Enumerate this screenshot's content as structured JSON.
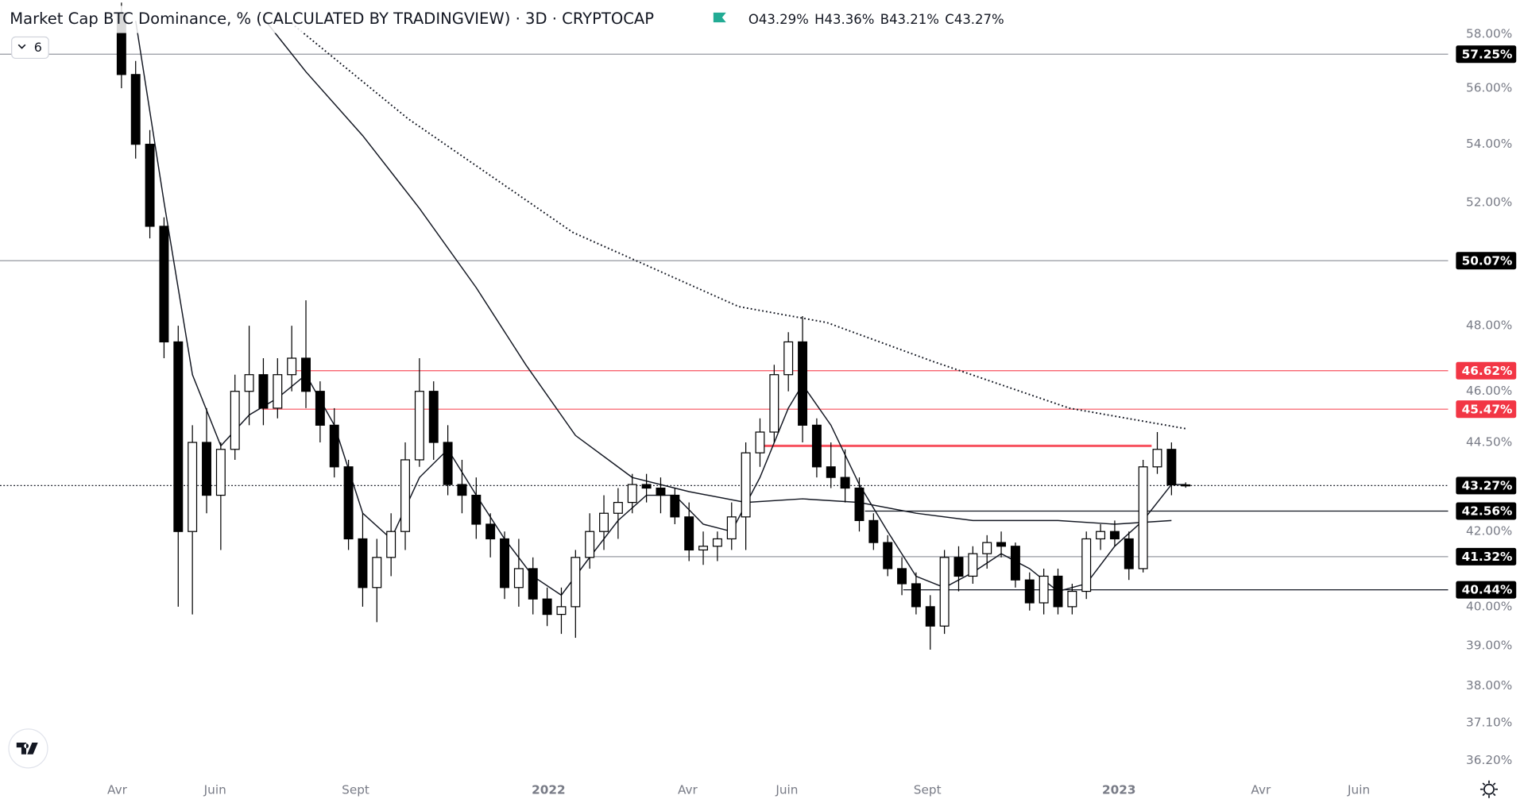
{
  "chart_data": {
    "type": "candlestick",
    "title": "Market Cap BTC Dominance, % (CALCULATED BY TRADINGVIEW) · 3D · CRYPTOCAP",
    "ohlc_labels": [
      "O43.29%",
      "H43.36%",
      "B43.21%",
      "C43.27%"
    ],
    "indicator_count": 6,
    "log_scale": true,
    "grid": false,
    "up_color": "#ffffff",
    "down_color": "#000000",
    "outline_color": "#000000",
    "x": [
      0,
      1,
      2,
      3,
      4,
      5,
      6,
      7,
      8,
      9,
      10,
      11,
      12,
      13,
      14,
      15,
      16,
      17,
      18,
      19,
      20,
      21,
      22,
      23,
      24,
      25,
      26,
      27,
      28,
      29,
      30,
      31,
      32,
      33,
      34,
      35,
      36,
      37,
      38,
      39,
      40,
      41,
      42,
      43,
      44,
      45,
      46,
      47,
      48,
      49,
      50,
      51,
      52,
      53,
      54,
      55,
      56,
      57,
      58,
      59,
      60,
      61,
      62,
      63,
      64,
      65,
      66,
      67,
      68,
      69,
      70,
      71,
      72,
      73,
      74,
      75
    ],
    "open": [
      58.8,
      56.5,
      54,
      51.2,
      47.5,
      42,
      44.5,
      43,
      44.3,
      46,
      46.5,
      45.5,
      46.5,
      47,
      46,
      45,
      43.8,
      41.8,
      40.5,
      41.3,
      42,
      44,
      46,
      44.5,
      43.3,
      43,
      42.2,
      41.8,
      40.5,
      41,
      40.2,
      39.8,
      40,
      41.3,
      42,
      42.5,
      42.8,
      43.3,
      43.2,
      43,
      42.4,
      41.5,
      41.6,
      41.8,
      42.4,
      44.2,
      44.8,
      46.5,
      47.5,
      45,
      43.8,
      43.5,
      43.2,
      42.3,
      41.7,
      41,
      40.6,
      40,
      39.5,
      41.3,
      40.8,
      41.4,
      41.7,
      41.6,
      40.7,
      40.1,
      40.8,
      40,
      40.4,
      41.8,
      42,
      41.8,
      41,
      43.8,
      44.3,
      43.29
    ],
    "high": [
      59.2,
      57,
      54.5,
      51.5,
      48,
      45,
      45.5,
      44.5,
      46.5,
      48,
      47,
      47,
      48,
      48.8,
      46.3,
      45.5,
      44,
      42.5,
      41.8,
      42.5,
      44.5,
      47,
      46.3,
      45,
      44,
      43.5,
      42.5,
      42,
      41.8,
      41.3,
      40.5,
      40.5,
      41.5,
      42.5,
      43,
      43.2,
      43.6,
      43.6,
      43.5,
      43.2,
      42.8,
      42,
      42,
      42.8,
      44.5,
      45.2,
      46.8,
      47.8,
      48.3,
      45.2,
      44.5,
      44.3,
      43.5,
      42.5,
      41.9,
      41.3,
      40.9,
      40.3,
      41.5,
      41.6,
      41.6,
      41.9,
      42,
      41.7,
      40.9,
      41,
      41,
      40.6,
      42,
      42.2,
      42.3,
      42,
      44,
      44.8,
      44.5,
      43.36
    ],
    "low": [
      56,
      53.5,
      50.8,
      47,
      40,
      39.8,
      42.5,
      41.5,
      44,
      45,
      45,
      45.2,
      46,
      45.5,
      44.5,
      43.5,
      41.5,
      40,
      39.6,
      40.8,
      41.5,
      43.8,
      44,
      43,
      42.5,
      41.8,
      41.3,
      40.2,
      40,
      39.8,
      39.5,
      39.3,
      39.2,
      41,
      41.5,
      41.8,
      42.5,
      42.8,
      42.5,
      42.2,
      41.2,
      41.1,
      41.2,
      41.5,
      41.5,
      43.8,
      44.5,
      46,
      44.5,
      43.5,
      43.2,
      42.8,
      42,
      41.5,
      40.8,
      40.3,
      39.8,
      38.9,
      39.3,
      40.4,
      40.6,
      41,
      41.3,
      40.5,
      39.9,
      39.8,
      39.8,
      39.8,
      40.2,
      41.5,
      41.6,
      40.7,
      40.9,
      43.6,
      43,
      43.21
    ],
    "close": [
      56.5,
      54,
      51.2,
      47.5,
      42,
      44.5,
      43,
      44.3,
      46,
      46.5,
      45.5,
      46.5,
      47,
      46,
      45,
      43.8,
      41.8,
      40.5,
      41.3,
      42,
      44,
      46,
      44.5,
      43.3,
      43,
      42.2,
      41.8,
      40.5,
      41,
      40.2,
      39.8,
      40,
      41.3,
      42,
      42.5,
      42.8,
      43.3,
      43.2,
      43,
      42.4,
      41.5,
      41.6,
      41.8,
      42.4,
      44.2,
      44.8,
      46.5,
      47.5,
      45,
      43.8,
      43.5,
      43.2,
      42.3,
      41.7,
      41,
      40.6,
      40,
      39.5,
      41.3,
      40.8,
      41.4,
      41.7,
      41.6,
      40.7,
      40.1,
      40.8,
      40,
      40.4,
      41.8,
      42,
      41.8,
      41,
      43.8,
      44.3,
      43.29,
      43.27
    ],
    "lines": [
      {
        "color": "#131722",
        "style": "solid",
        "x": [
          1,
          3,
          5,
          7,
          9,
          11,
          13,
          15,
          17,
          19,
          21,
          23,
          25,
          27,
          29,
          31,
          33,
          35,
          37,
          39,
          41,
          43,
          45,
          47,
          48,
          50,
          52,
          54,
          56,
          58,
          60,
          62,
          64,
          66,
          68,
          70,
          72,
          74,
          75
        ],
        "values": [
          58.5,
          52,
          46.5,
          44.4,
          45.3,
          45.8,
          46.5,
          45,
          42.5,
          41.8,
          43.5,
          44.3,
          43,
          41.8,
          40.8,
          40.3,
          41.3,
          42.3,
          43,
          43,
          42.2,
          42,
          43.5,
          45.5,
          46.2,
          45,
          43.3,
          42,
          40.8,
          40.5,
          40.9,
          41.4,
          41,
          40.4,
          40.6,
          41.6,
          42.3,
          43.3,
          43.3
        ]
      },
      {
        "color": "#131722",
        "style": "solid",
        "x": [
          10,
          13,
          17,
          21,
          25,
          28.5,
          32,
          36,
          40,
          44,
          48,
          52,
          56,
          60,
          66,
          70,
          74
        ],
        "values": [
          58.6,
          56.6,
          54.3,
          51.8,
          49.2,
          46.8,
          44.7,
          43.5,
          43.1,
          42.8,
          42.9,
          42.8,
          42.5,
          42.3,
          42.3,
          42.2,
          42.3
        ]
      },
      {
        "color": "#131722",
        "style": "dotted",
        "x": [
          12,
          20.2,
          31.8,
          43.5,
          49.7,
          57.2,
          66.8,
          75
        ],
        "values": [
          58.4,
          54.9,
          51,
          48.6,
          48.1,
          46.9,
          45.5,
          44.9
        ]
      }
    ],
    "levels": [
      {
        "value": 57.25,
        "label": "57.25%",
        "color": "#9598a1",
        "badge_color": "#000000"
      },
      {
        "value": 50.07,
        "label": "50.07%",
        "color": "#9598a1",
        "badge_color": "#000000"
      },
      {
        "value": 46.62,
        "label": "46.62%",
        "color": "#f7525f",
        "badge_color": "#f23645",
        "x_start": 12.0
      },
      {
        "value": 45.47,
        "label": "45.47%",
        "color": "#f7525f",
        "badge_color": "#f23645",
        "x_start": 9.9
      },
      {
        "value": 44.4,
        "color": "#f7525f",
        "x_start": 44.9,
        "x_end": 72.6
      },
      {
        "value": 43.27,
        "label": "43.27%",
        "color": "#131722",
        "badge_color": "#000000",
        "style": "dotted"
      },
      {
        "value": 42.56,
        "label": "42.56%",
        "color": "#131722",
        "badge_color": "#000000",
        "x_start": 52.4
      },
      {
        "value": 41.32,
        "label": "41.32%",
        "color": "#9598a1",
        "badge_color": "#000000",
        "x_start": 33.2
      },
      {
        "value": 40.44,
        "label": "40.44%",
        "color": "#131722",
        "badge_color": "#000000",
        "x_start": 55.1
      }
    ],
    "xlim": [
      -8.56,
      93.5
    ],
    "xticks": [
      {
        "value": -0.3,
        "label": "Avr"
      },
      {
        "value": 6.6,
        "label": "Juin"
      },
      {
        "value": 16.5,
        "label": "Sept"
      },
      {
        "value": 30.1,
        "label": "2022"
      },
      {
        "value": 39.9,
        "label": "Avr"
      },
      {
        "value": 46.9,
        "label": "Juin"
      },
      {
        "value": 56.8,
        "label": "Sept"
      },
      {
        "value": 70.3,
        "label": "2023"
      },
      {
        "value": 80.3,
        "label": "Avr"
      },
      {
        "value": 87.2,
        "label": "Juin"
      }
    ],
    "ylim": [
      35.8,
      59.3
    ],
    "yticks": [
      {
        "value": 58,
        "label": "58.00%"
      },
      {
        "value": 56,
        "label": "56.00%"
      },
      {
        "value": 54,
        "label": "54.00%"
      },
      {
        "value": 52,
        "label": "52.00%"
      },
      {
        "value": 48,
        "label": "48.00%"
      },
      {
        "value": 46,
        "label": "46.00%"
      },
      {
        "value": 44.5,
        "label": "44.50%"
      },
      {
        "value": 42,
        "label": "42.00%"
      },
      {
        "value": 40,
        "label": "40.00%"
      },
      {
        "value": 39,
        "label": "39.00%"
      },
      {
        "value": 38,
        "label": "38.00%"
      },
      {
        "value": 37.1,
        "label": "37.10%"
      },
      {
        "value": 36.2,
        "label": "36.20%"
      }
    ]
  }
}
